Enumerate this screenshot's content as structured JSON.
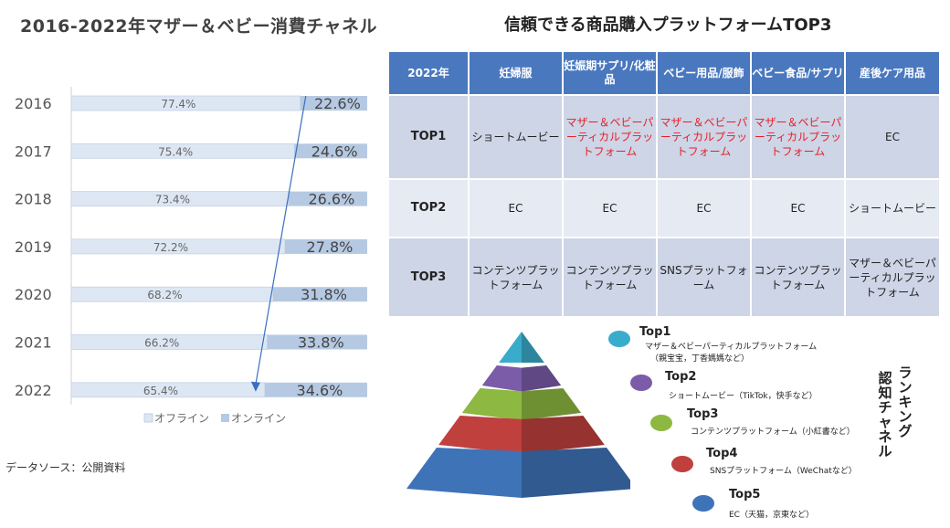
{
  "chart_title": "2016-2022年マザー＆ベビー消費チャネル",
  "source_label": "データソース：公開資料",
  "chart_data": {
    "type": "bar",
    "orientation": "horizontal",
    "stacked": true,
    "percent_stacked": true,
    "title": "2016-2022年マザー＆ベビー消費チャネル",
    "categories": [
      "2016",
      "2017",
      "2018",
      "2019",
      "2020",
      "2021",
      "2022"
    ],
    "series": [
      {
        "name": "オフライン",
        "values": [
          77.4,
          75.4,
          73.4,
          72.2,
          68.2,
          66.2,
          65.4
        ],
        "labels": [
          "77.4%",
          "75.4%",
          "73.4%",
          "72.2%",
          "68.2%",
          "66.2%",
          "65.4%"
        ],
        "color": "#dde7f4"
      },
      {
        "name": "オンライン",
        "values": [
          22.6,
          24.6,
          26.6,
          27.8,
          31.8,
          33.8,
          34.6
        ],
        "labels": [
          "22.6%",
          "24.6%",
          "26.6%",
          "27.8%",
          "31.8%",
          "33.8%",
          "34.6%"
        ],
        "color": "#b6c9e2"
      }
    ],
    "xlim": [
      0,
      100
    ],
    "legend": [
      "オフライン",
      "オンライン"
    ],
    "legend_position": "bottom",
    "annotation": "arrow from 2016 to 2022 indicating online growth",
    "arrow_color": "#3a6fc0"
  },
  "table": {
    "title": "信頼できる商品購入プラットフォームTOP3",
    "headers": [
      "2022年",
      "妊婦服",
      "妊娠期サプリ/化粧品",
      "ベビー用品/服飾",
      "ベビー食品/サプリ",
      "産後ケア用品"
    ],
    "rows": [
      {
        "label": "TOP1",
        "cells": [
          "ショートムービー",
          "マザー＆ベビーパーティカルプラットフォーム",
          "マザー＆ベビーパーティカルプラットフォーム",
          "マザー＆ベビーパーティカルプラットフォーム",
          "EC"
        ]
      },
      {
        "label": "TOP2",
        "cells": [
          "EC",
          "EC",
          "EC",
          "EC",
          "ショートムービー"
        ]
      },
      {
        "label": "TOP3",
        "cells": [
          "コンテンツプラットフォーム",
          "コンテンツプラットフォーム",
          "SNSプラットフォーム",
          "コンテンツプラットフォーム",
          "マザー＆ベビーパーティカルプラットフォーム"
        ]
      }
    ],
    "header_color": "#4a78bf",
    "highlight_color": "#e8202a"
  },
  "pyramid": {
    "vertical_label": "ランキング認知チャネル",
    "levels": [
      {
        "rank": "Top1",
        "desc": "マザー＆ベビーパーティカルプラットフォーム",
        "desc2": "（親宝宝，丁香媽媽など）",
        "color": "#3aaccb"
      },
      {
        "rank": "Top2",
        "desc": "ショートムービー（TikTok，快手など）",
        "color": "#7a5ca8"
      },
      {
        "rank": "Top3",
        "desc": "コンテンツプラットフォーム（小紅書など）",
        "color": "#8db842"
      },
      {
        "rank": "Top4",
        "desc": "SNSプラットフォーム（WeChatなど）",
        "color": "#c0403e"
      },
      {
        "rank": "Top5",
        "desc": "EC（天猫，京東など）",
        "color": "#3e73b8"
      }
    ]
  }
}
